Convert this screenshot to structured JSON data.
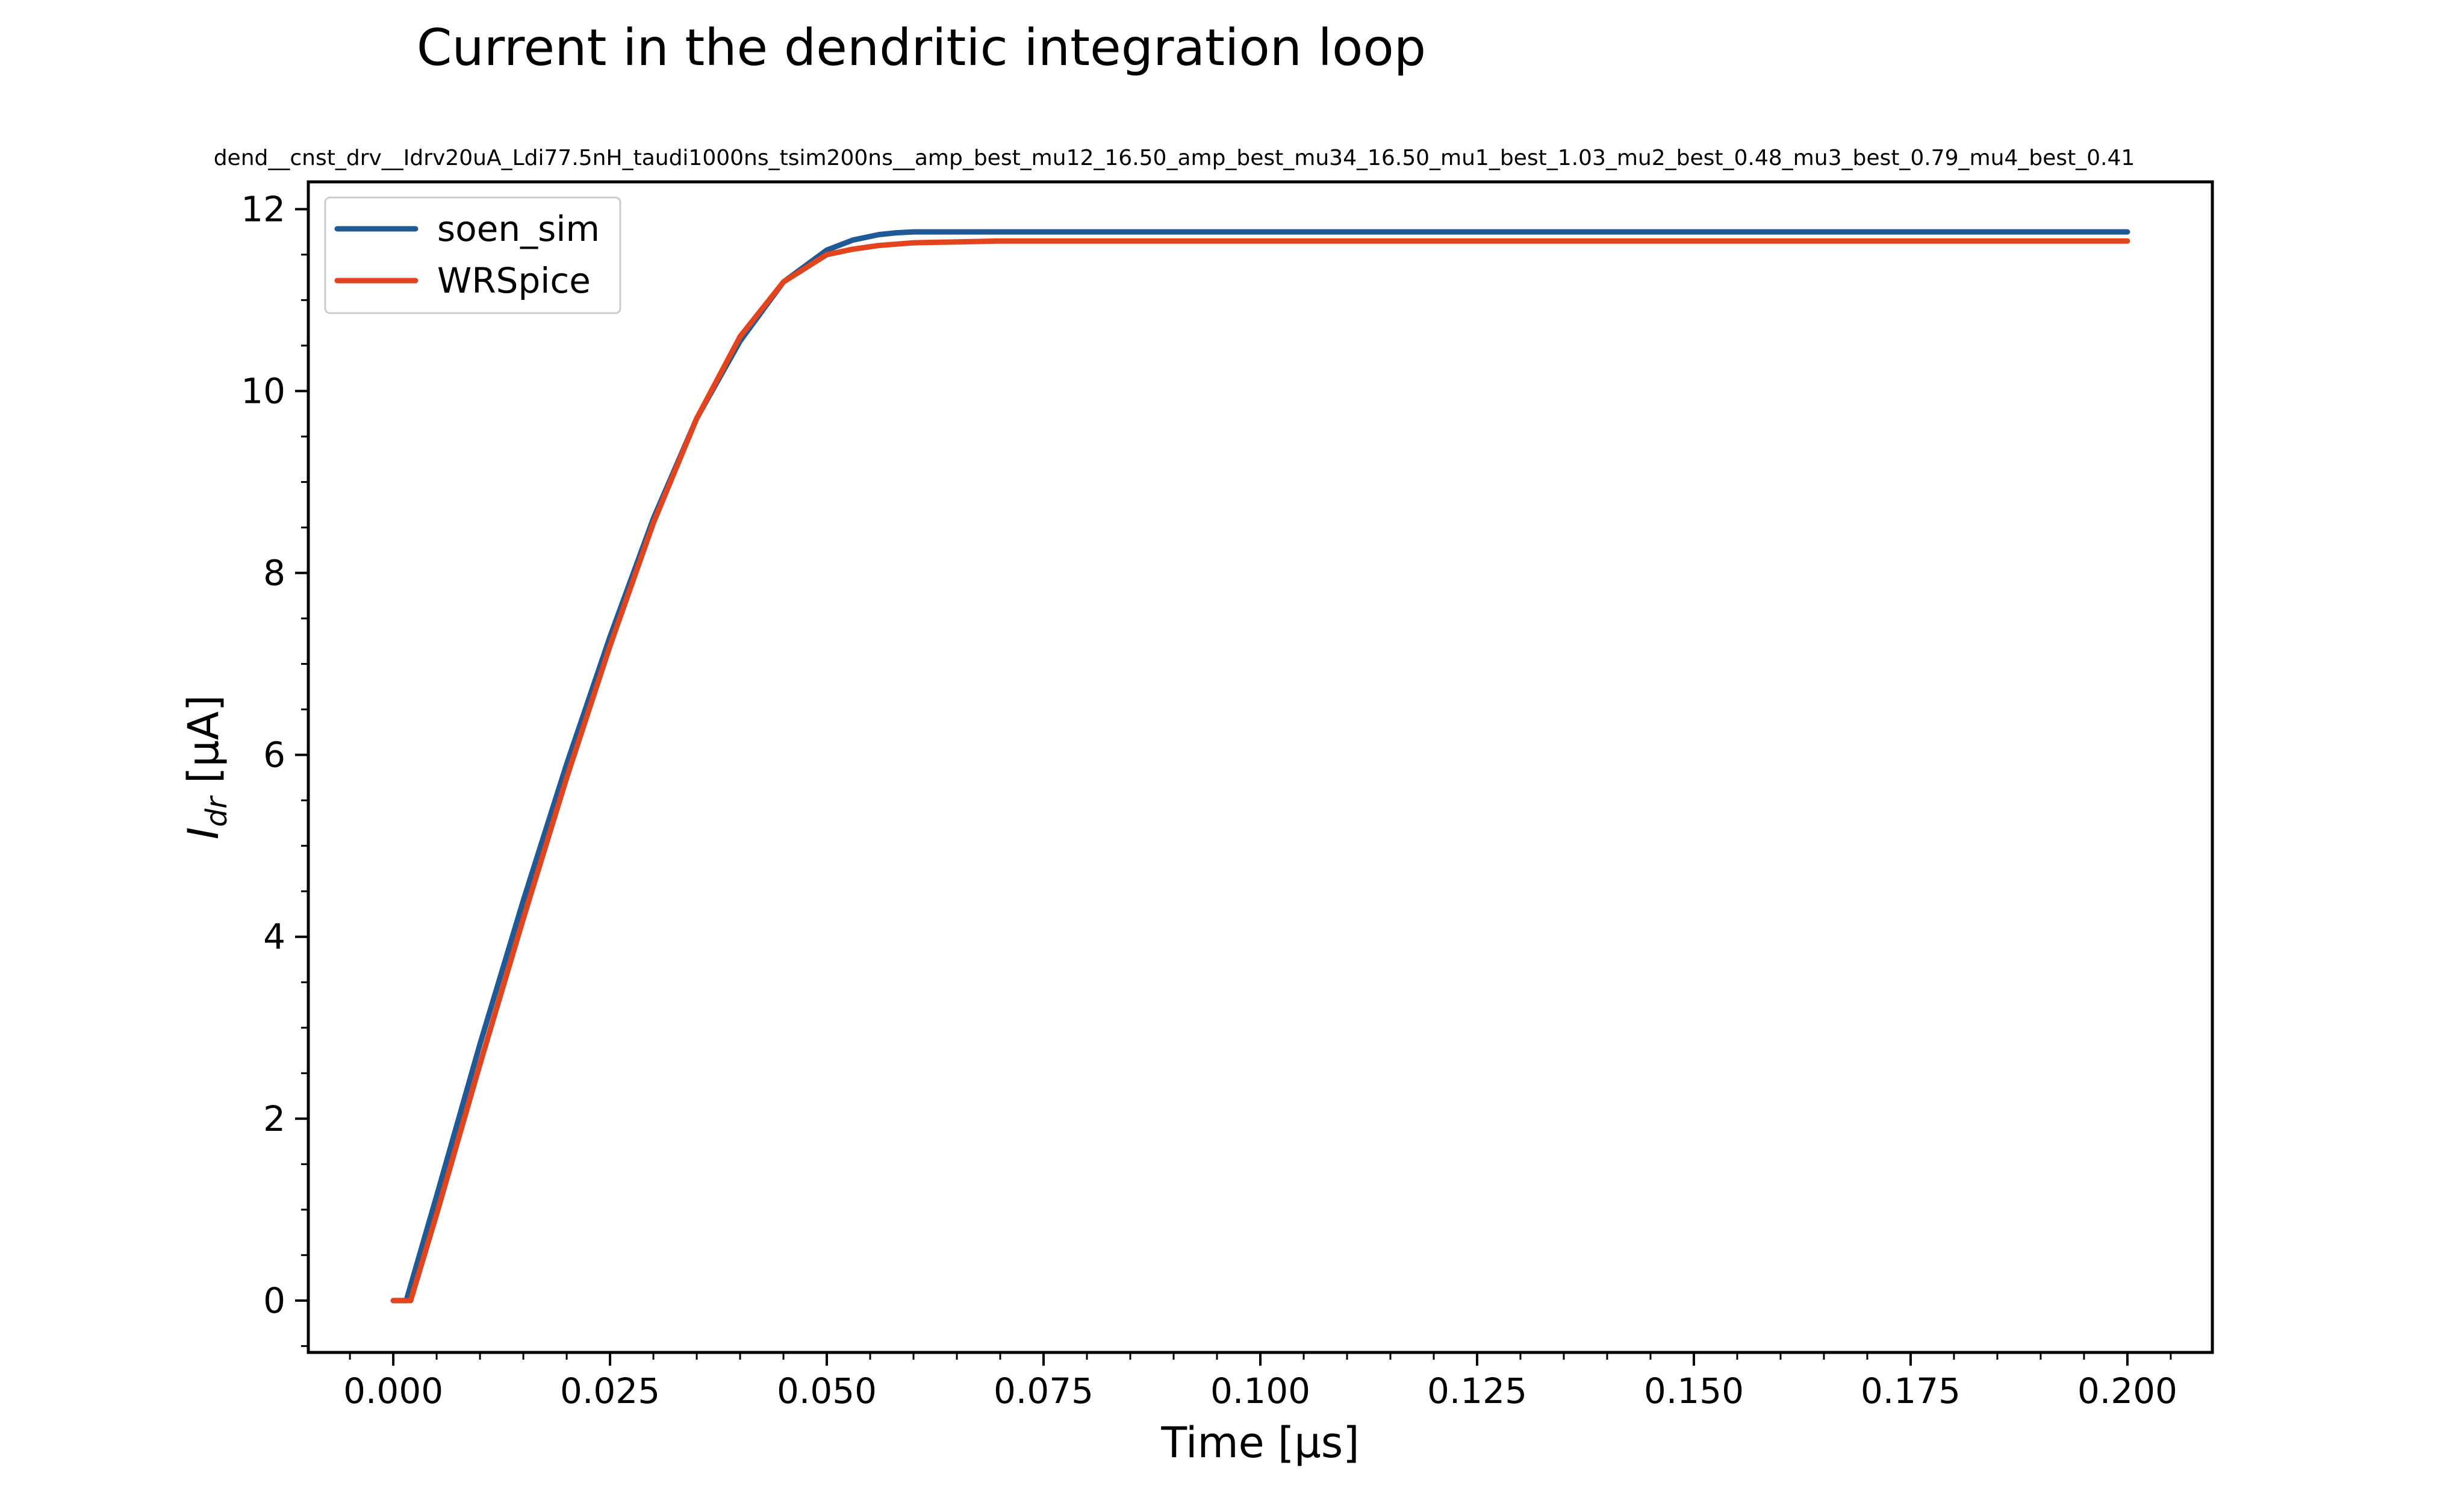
{
  "chart_data": {
    "type": "line",
    "title": "Current in the dendritic integration loop",
    "subtitle": "dend__cnst_drv__Idrv20uA_Ldi77.5nH_taudi1000ns_tsim200ns__amp_best_mu12_16.50_amp_best_mu34_16.50_mu1_best_1.03_mu2_best_0.48_mu3_best_0.79_mu4_best_0.41",
    "xlabel": "Time [μs]",
    "ylabel_main": "I",
    "ylabel_sub": "dr",
    "ylabel_unit": " [μA]",
    "xlim": [
      -0.0098,
      0.2098
    ],
    "ylim": [
      -0.57,
      12.3
    ],
    "xticks": [
      0.0,
      0.025,
      0.05,
      0.075,
      0.1,
      0.125,
      0.15,
      0.175,
      0.2
    ],
    "xtick_labels": [
      "0.000",
      "0.025",
      "0.050",
      "0.075",
      "0.100",
      "0.125",
      "0.150",
      "0.175",
      "0.200"
    ],
    "yticks": [
      0,
      2,
      4,
      6,
      8,
      10,
      12
    ],
    "ytick_labels": [
      "0",
      "2",
      "4",
      "6",
      "8",
      "10",
      "12"
    ],
    "grid": false,
    "legend_position": "top-left",
    "series": [
      {
        "name": "soen_sim",
        "color": "#1f5a96",
        "x": [
          0.0,
          0.0015,
          0.005,
          0.01,
          0.015,
          0.02,
          0.025,
          0.03,
          0.035,
          0.04,
          0.045,
          0.05,
          0.053,
          0.056,
          0.058,
          0.06,
          0.065,
          0.07,
          0.1,
          0.15,
          0.2
        ],
        "y": [
          0.0,
          0.0,
          1.15,
          2.82,
          4.4,
          5.9,
          7.3,
          8.6,
          9.7,
          10.55,
          11.2,
          11.55,
          11.66,
          11.72,
          11.74,
          11.75,
          11.75,
          11.75,
          11.75,
          11.75,
          11.75
        ]
      },
      {
        "name": "WRSpice",
        "color": "#e2451e",
        "x": [
          0.0,
          0.002,
          0.005,
          0.01,
          0.015,
          0.02,
          0.025,
          0.03,
          0.035,
          0.04,
          0.045,
          0.05,
          0.053,
          0.056,
          0.06,
          0.065,
          0.07,
          0.1,
          0.15,
          0.2
        ],
        "y": [
          0.0,
          0.0,
          0.95,
          2.6,
          4.2,
          5.75,
          7.2,
          8.55,
          9.7,
          10.6,
          11.2,
          11.5,
          11.56,
          11.6,
          11.63,
          11.64,
          11.65,
          11.65,
          11.65,
          11.65
        ]
      }
    ]
  }
}
